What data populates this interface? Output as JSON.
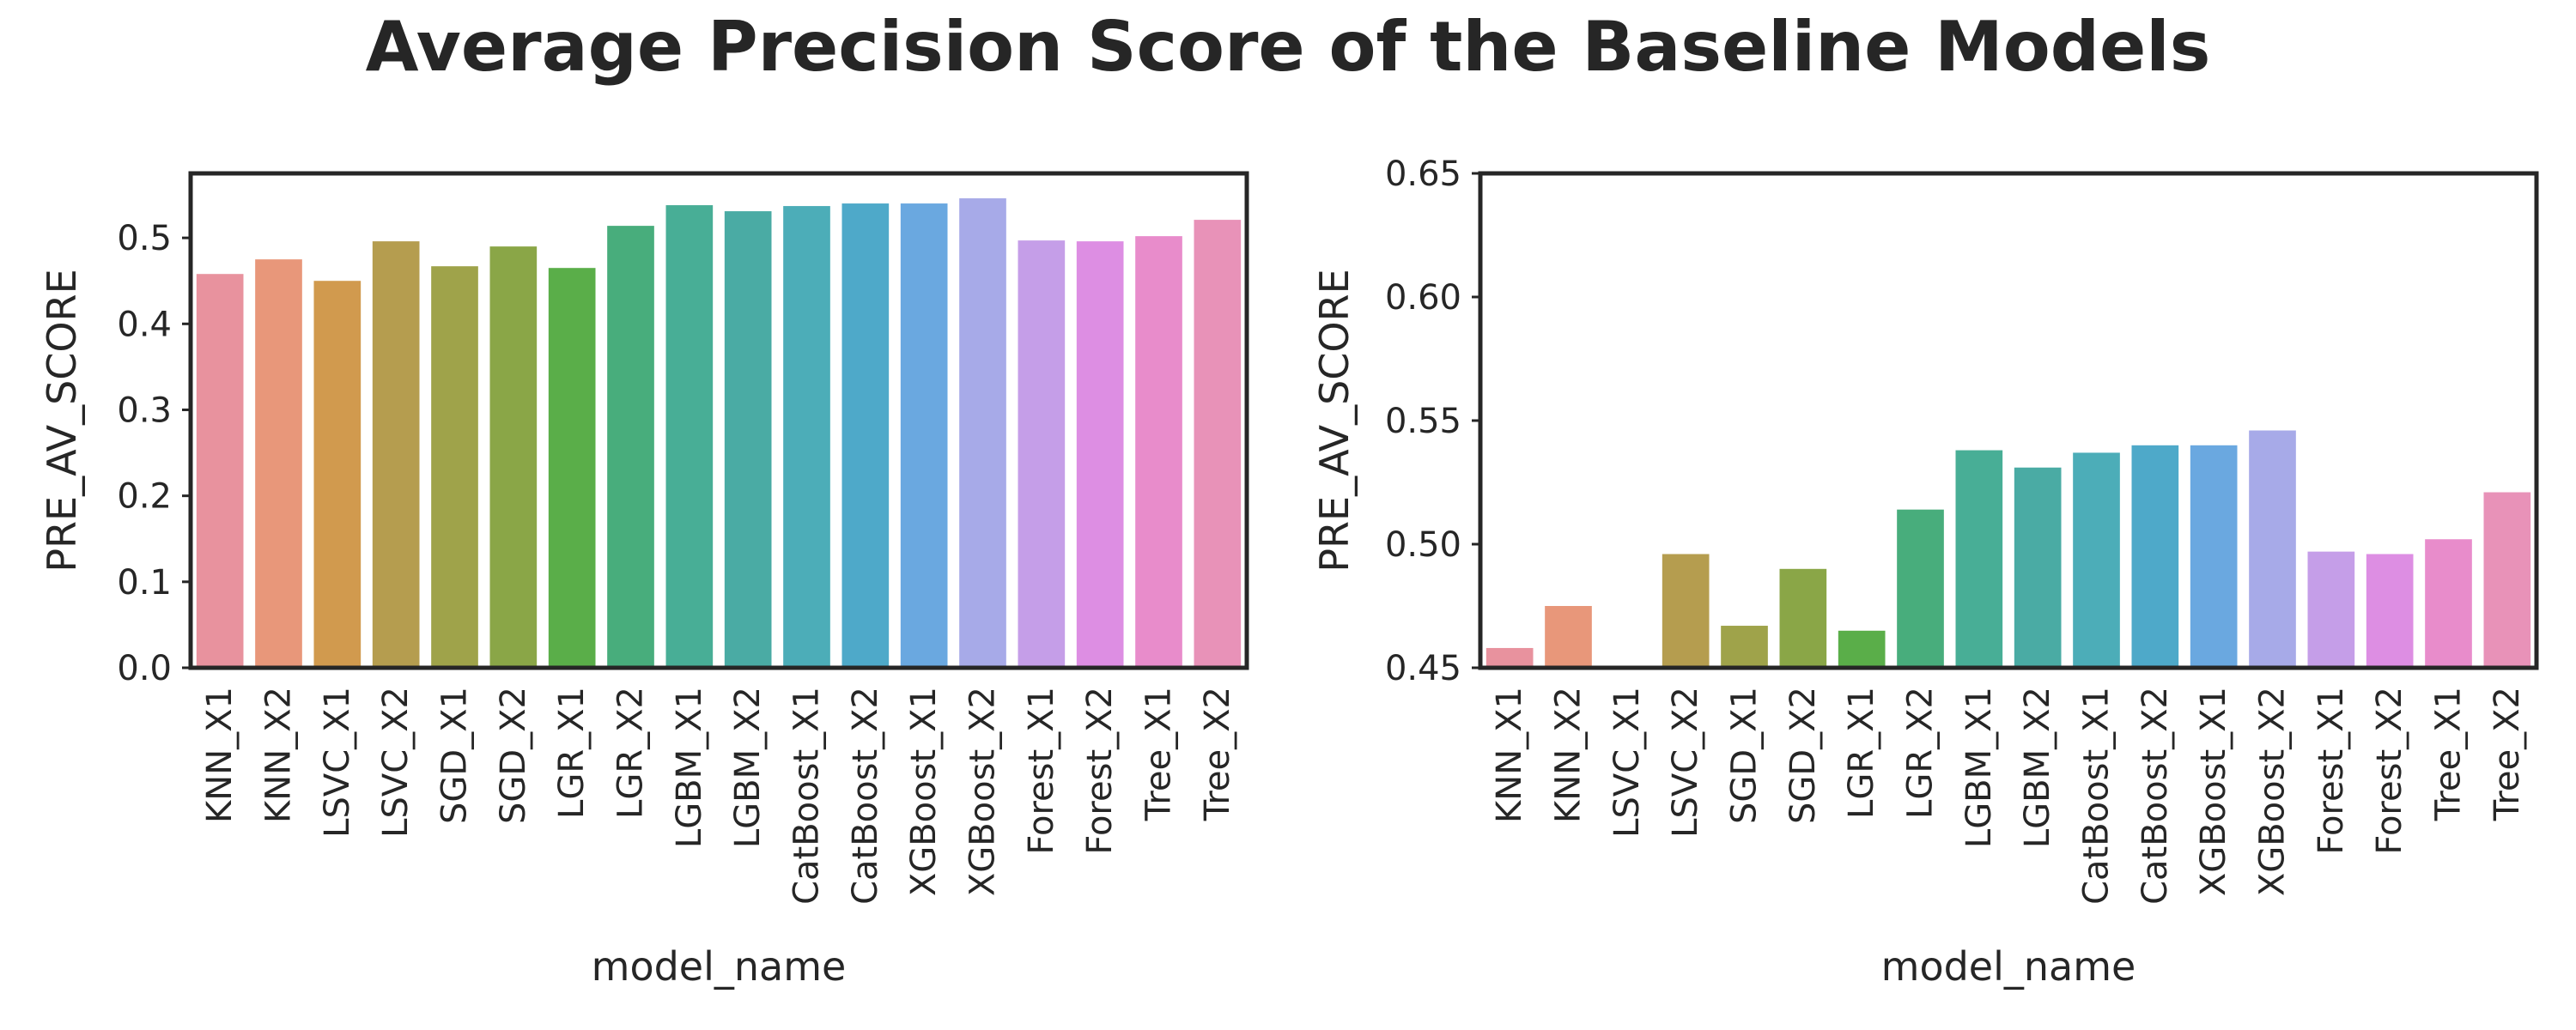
{
  "figure": {
    "title": "Average Precision Score of the Baseline Models"
  },
  "chart_data": [
    {
      "type": "bar",
      "title": "",
      "xlabel": "model_name",
      "ylabel": "PRE_AV_SCORE",
      "ylim": [
        0,
        0.575
      ],
      "yticks": [
        "0.0",
        "0.1",
        "0.2",
        "0.3",
        "0.4",
        "0.5"
      ],
      "yticks_values": [
        0,
        0.1,
        0.2,
        0.3,
        0.4,
        0.5
      ],
      "grid": false,
      "categories": [
        "KNN_X1",
        "KNN_X2",
        "LSVC_X1",
        "LSVC_X2",
        "SGD_X1",
        "SGD_X2",
        "LGR_X1",
        "LGR_X2",
        "LGBM_X1",
        "LGBM_X2",
        "CatBoost_X1",
        "CatBoost_X2",
        "XGBoost_X1",
        "XGBoost_X2",
        "Forest_X1",
        "Forest_X2",
        "Tree_X1",
        "Tree_X2"
      ],
      "values": [
        0.458,
        0.475,
        0.45,
        0.496,
        0.467,
        0.49,
        0.465,
        0.514,
        0.538,
        0.531,
        0.537,
        0.54,
        0.54,
        0.546,
        0.497,
        0.496,
        0.502,
        0.521
      ],
      "colors": [
        "#e8929e",
        "#e8977a",
        "#d19a4e",
        "#b59d4f",
        "#9fa34a",
        "#8aa647",
        "#5aae49",
        "#48ad7c",
        "#48ae96",
        "#4aaba4",
        "#4cadb8",
        "#4ea9c9",
        "#6aa8e0",
        "#a7aae8",
        "#c59ee8",
        "#dd8ee3",
        "#e88ccb",
        "#e892b8"
      ]
    },
    {
      "type": "bar",
      "title": "",
      "xlabel": "model_name",
      "ylabel": "PRE_AV_SCORE",
      "ylim": [
        0.45,
        0.65
      ],
      "yticks": [
        "0.45",
        "0.50",
        "0.55",
        "0.60",
        "0.65"
      ],
      "yticks_values": [
        0.45,
        0.5,
        0.55,
        0.6,
        0.65
      ],
      "grid": false,
      "categories": [
        "KNN_X1",
        "KNN_X2",
        "LSVC_X1",
        "LSVC_X2",
        "SGD_X1",
        "SGD_X2",
        "LGR_X1",
        "LGR_X2",
        "LGBM_X1",
        "LGBM_X2",
        "CatBoost_X1",
        "CatBoost_X2",
        "XGBoost_X1",
        "XGBoost_X2",
        "Forest_X1",
        "Forest_X2",
        "Tree_X1",
        "Tree_X2"
      ],
      "values": [
        0.458,
        0.475,
        0.45,
        0.496,
        0.467,
        0.49,
        0.465,
        0.514,
        0.538,
        0.531,
        0.537,
        0.54,
        0.54,
        0.546,
        0.497,
        0.496,
        0.502,
        0.521
      ],
      "colors": [
        "#e8929e",
        "#e8977a",
        "#d19a4e",
        "#b59d4f",
        "#9fa34a",
        "#8aa647",
        "#5aae49",
        "#48ad7c",
        "#48ae96",
        "#4aaba4",
        "#4cadb8",
        "#4ea9c9",
        "#6aa8e0",
        "#a7aae8",
        "#c59ee8",
        "#dd8ee3",
        "#e88ccb",
        "#e892b8"
      ]
    }
  ]
}
